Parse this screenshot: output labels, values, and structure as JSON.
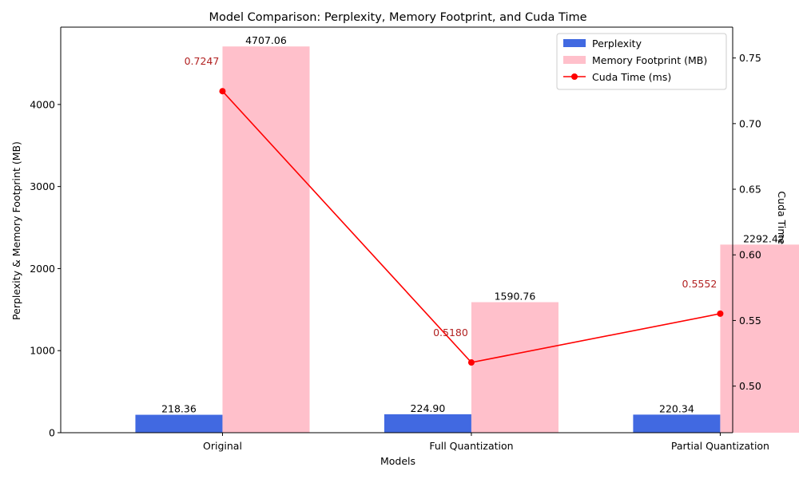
{
  "chart_data": {
    "type": "bar",
    "title": "Model Comparison: Perplexity, Memory Footprint, and Cuda Time",
    "xlabel": "Models",
    "ylabel": "Perplexity & Memory Footprint (MB)",
    "y2label": "Cuda Time (ms)",
    "categories": [
      "Original",
      "Full Quantization",
      "Partial Quantization"
    ],
    "ylim": [
      0,
      4942.4
    ],
    "y2lim": [
      0.4645,
      0.7735
    ],
    "yticks": [
      0,
      1000,
      2000,
      3000,
      4000
    ],
    "y2ticks": [
      0.5,
      0.55,
      0.6,
      0.65,
      0.7,
      0.75
    ],
    "y2tick_labels": [
      "0.50",
      "0.55",
      "0.60",
      "0.65",
      "0.70",
      "0.75"
    ],
    "series": [
      {
        "name": "Perplexity",
        "kind": "bar",
        "axis": "left",
        "color": "#4169e1",
        "values": [
          218.36,
          224.9,
          220.34
        ],
        "labels": [
          "218.36",
          "224.90",
          "220.34"
        ]
      },
      {
        "name": "Memory Footprint (MB)",
        "kind": "bar",
        "axis": "left",
        "color": "#ffc0cb",
        "values": [
          4707.06,
          1590.76,
          2292.42
        ],
        "labels": [
          "4707.06",
          "1590.76",
          "2292.42"
        ]
      },
      {
        "name": "Cuda Time (ms)",
        "kind": "line",
        "axis": "right",
        "color": "#ff0000",
        "label_color": "#b22222",
        "values": [
          0.7247,
          0.518,
          0.5552
        ],
        "labels": [
          "0.7247",
          "0.5180",
          "0.5552"
        ]
      }
    ],
    "legend": {
      "position": "top-right",
      "entries": [
        "Perplexity",
        "Memory Footprint (MB)",
        "Cuda Time (ms)"
      ]
    },
    "grid": false
  }
}
